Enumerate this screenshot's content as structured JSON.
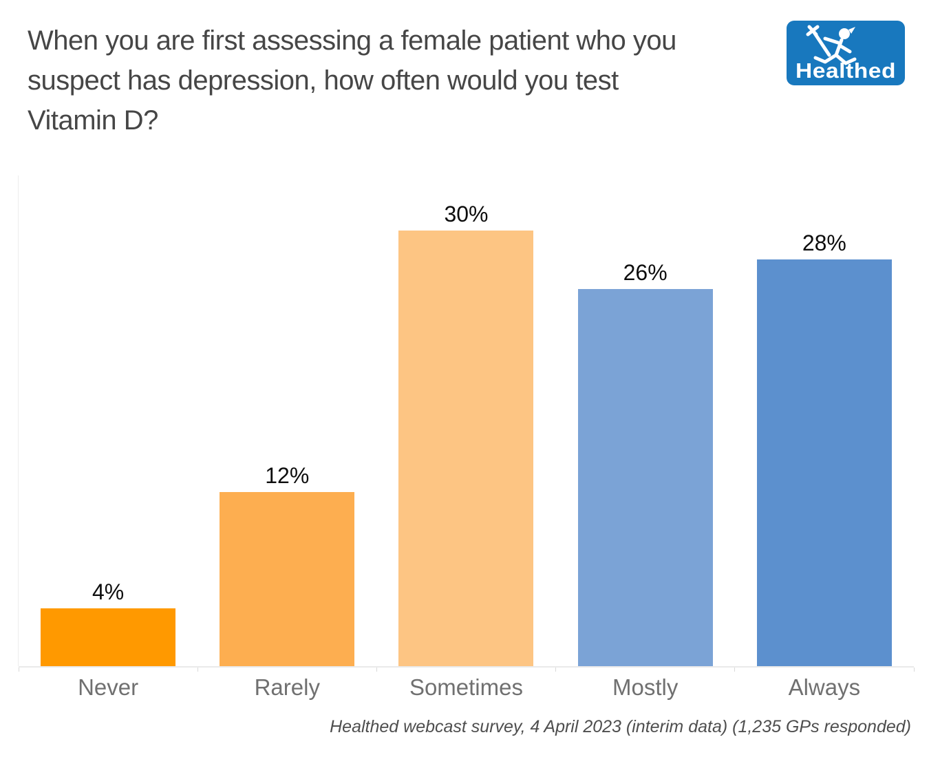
{
  "title_lines": [
    "When you are first assessing a female patient who you",
    "suspect has depression, how often would you test",
    "Vitamin D?"
  ],
  "logo": {
    "text": "Healthed",
    "icon": "hermes-runner-with-caduceus",
    "bg_color": "#1878BE",
    "fg_color": "#FFFFFF"
  },
  "chart_data": {
    "type": "bar",
    "title": "When you are first assessing a female patient who you suspect has depression, how often would you test Vitamin D?",
    "categories": [
      "Never",
      "Rarely",
      "Sometimes",
      "Mostly",
      "Always"
    ],
    "values": [
      4,
      12,
      30,
      26,
      28
    ],
    "value_labels": [
      "4%",
      "12%",
      "30%",
      "26%",
      "28%"
    ],
    "bar_colors": [
      "#FF9900",
      "#FDAE50",
      "#FDC583",
      "#7BA3D6",
      "#5C90CE"
    ],
    "xlabel": "",
    "ylabel": "",
    "ylim": [
      0,
      33.8
    ],
    "grid": false,
    "legend": false,
    "caption": "Healthed webcast survey, 4 April 2023 (interim data) (1,235 GPs responded)"
  },
  "colors": {
    "title_text": "#464646",
    "value_label_text": "#0d0d0d",
    "axis_label_text": "#707070",
    "caption_text": "#4e4e4e",
    "axis_line": "#eaeaea"
  }
}
